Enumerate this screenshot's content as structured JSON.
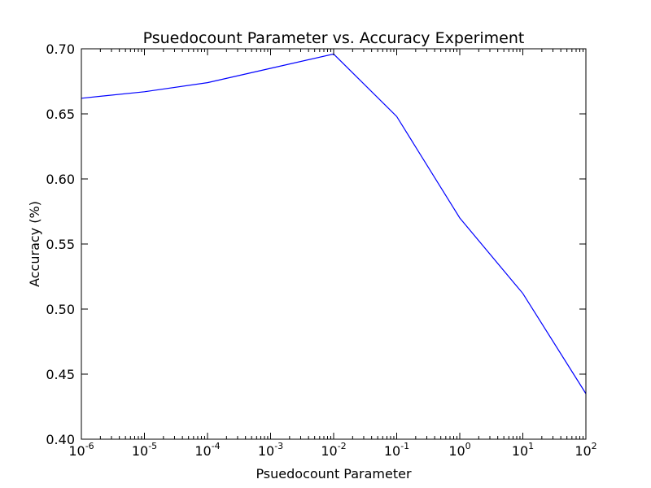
{
  "chart_data": {
    "type": "line",
    "title": "Psuedocount Parameter vs. Accuracy Experiment",
    "xlabel": "Psuedocount Parameter",
    "ylabel": "Accuracy (%)",
    "xscale": "log",
    "xlim": [
      1e-06,
      100
    ],
    "ylim": [
      0.4,
      0.7
    ],
    "grid": false,
    "x_tick_labels": [
      {
        "base": "10",
        "exp": "-6"
      },
      {
        "base": "10",
        "exp": "-5"
      },
      {
        "base": "10",
        "exp": "-4"
      },
      {
        "base": "10",
        "exp": "-3"
      },
      {
        "base": "10",
        "exp": "-2"
      },
      {
        "base": "10",
        "exp": "-1"
      },
      {
        "base": "10",
        "exp": "0"
      },
      {
        "base": "10",
        "exp": "1"
      },
      {
        "base": "10",
        "exp": "2"
      }
    ],
    "y_tick_labels": [
      "0.40",
      "0.45",
      "0.50",
      "0.55",
      "0.60",
      "0.65",
      "0.70"
    ],
    "y_ticks": [
      0.4,
      0.45,
      0.5,
      0.55,
      0.6,
      0.65,
      0.7
    ],
    "series": [
      {
        "color": "#0000ff",
        "x": [
          1e-06,
          1e-05,
          0.0001,
          0.001,
          0.01,
          0.1,
          1,
          10,
          100
        ],
        "y": [
          0.662,
          0.667,
          0.674,
          0.685,
          0.696,
          0.648,
          0.57,
          0.512,
          0.435
        ]
      }
    ]
  }
}
